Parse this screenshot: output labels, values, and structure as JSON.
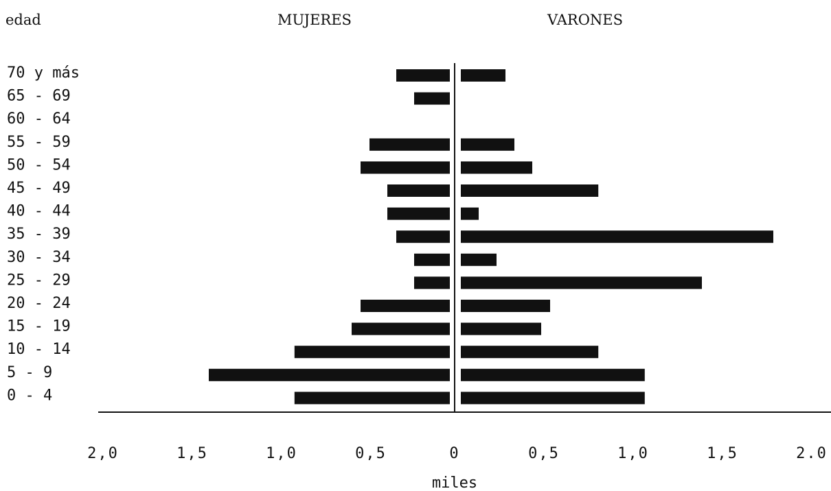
{
  "chart_data": {
    "type": "bar",
    "orientation": "horizontal",
    "subtype": "population-pyramid",
    "y_axis_title": "edad",
    "left_header": "MUJERES",
    "right_header": "VARONES",
    "xlabel": "miles",
    "categories": [
      "70 y más",
      "65 - 69",
      "60 - 64",
      "55 - 59",
      "50 - 54",
      "45 - 49",
      "40 - 44",
      "35 - 39",
      "30 - 34",
      "25 - 29",
      "20 - 24",
      "15 - 19",
      "10 - 14",
      "5 - 9",
      "0 - 4"
    ],
    "series": [
      {
        "name": "MUJERES",
        "side": "left",
        "values": [
          0.3,
          0.2,
          0.0,
          0.45,
          0.5,
          0.35,
          0.35,
          0.3,
          0.2,
          0.2,
          0.5,
          0.55,
          0.87,
          1.35,
          0.87
        ]
      },
      {
        "name": "VARONES",
        "side": "right",
        "values": [
          0.25,
          0.0,
          0.0,
          0.3,
          0.4,
          0.77,
          0.1,
          1.75,
          0.2,
          1.35,
          0.5,
          0.45,
          0.77,
          1.03,
          1.03
        ]
      }
    ],
    "x_tick_labels_left": [
      "2,0",
      "1,5",
      "1,0",
      "0,5"
    ],
    "x_tick_labels_right": [
      "0",
      "0,5",
      "1,0",
      "1,5",
      "2.0"
    ],
    "xlim": [
      0,
      2.0
    ],
    "grid": false,
    "legend": "none",
    "bar_color": "#111111"
  }
}
